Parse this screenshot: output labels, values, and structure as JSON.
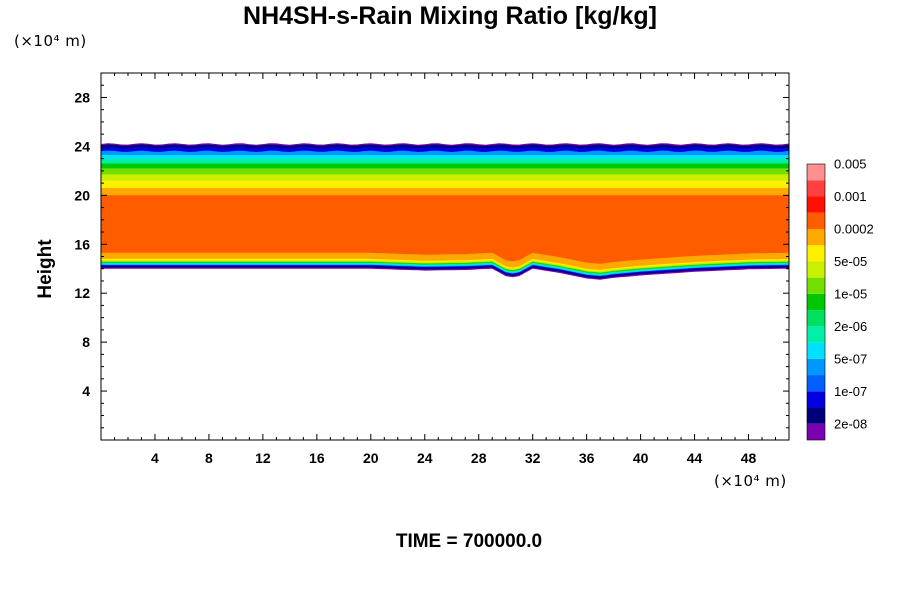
{
  "chart_data": {
    "type": "heatmap",
    "title": "NH4SH-s-Rain Mixing Ratio [kg/kg]",
    "ylabel": "Height",
    "x_unit": "(×10⁴ m)",
    "y_unit": "(×10⁴ m)",
    "xlim": [
      0,
      51
    ],
    "ylim": [
      0,
      30
    ],
    "x_ticks": [
      "4",
      "8",
      "12",
      "16",
      "20",
      "24",
      "28",
      "32",
      "36",
      "40",
      "44",
      "48"
    ],
    "y_ticks": [
      "4",
      "8",
      "12",
      "16",
      "20",
      "24",
      "28"
    ],
    "time_label": "TIME = 700000.0",
    "colorbar": {
      "colors": [
        "#7a00b0",
        "#00007a",
        "#0000e0",
        "#0060ff",
        "#0098ff",
        "#00e0ff",
        "#00f0a8",
        "#00e060",
        "#00c800",
        "#70e000",
        "#c8f000",
        "#fff000",
        "#ffa800",
        "#ff5c00",
        "#ff1000",
        "#ff4040",
        "#ff9090"
      ],
      "labels": [
        "2e-08",
        "1e-07",
        "5e-07",
        "2e-06",
        "1e-05",
        "5e-05",
        "0.0002",
        "0.001",
        "0.005"
      ]
    },
    "field_layers": [
      {
        "level_index": 0,
        "top": 24.2,
        "bottom": 14.0
      },
      {
        "level_index": 1,
        "top": 24.1,
        "bottom": 14.1
      },
      {
        "level_index": 2,
        "top": 23.9,
        "bottom": 14.2
      },
      {
        "level_index": 4,
        "top": 23.6,
        "bottom": 14.3
      },
      {
        "level_index": 5,
        "top": 23.3,
        "bottom": 14.35
      },
      {
        "level_index": 6,
        "top": 23.0,
        "bottom": 14.4
      },
      {
        "level_index": 8,
        "top": 22.6,
        "bottom": 14.5
      },
      {
        "level_index": 9,
        "top": 22.2,
        "bottom": 14.55
      },
      {
        "level_index": 10,
        "top": 21.7,
        "bottom": 14.6
      },
      {
        "level_index": 11,
        "top": 21.2,
        "bottom": 14.7
      },
      {
        "level_index": 12,
        "top": 20.6,
        "bottom": 14.8
      },
      {
        "level_index": 13,
        "top": 20.0,
        "bottom": 15.3
      }
    ],
    "lower_boundary": {
      "x": [
        0,
        4,
        8,
        12,
        16,
        20,
        24,
        27,
        29,
        30,
        30.5,
        31,
        32,
        34,
        36,
        37,
        38,
        40,
        42,
        44,
        46,
        48,
        51
      ],
      "dy": [
        0,
        0,
        0,
        0,
        0,
        0,
        -0.15,
        -0.1,
        0,
        -0.6,
        -0.7,
        -0.6,
        0,
        -0.35,
        -0.8,
        -0.9,
        -0.75,
        -0.55,
        -0.4,
        -0.25,
        -0.15,
        -0.05,
        0
      ]
    }
  }
}
